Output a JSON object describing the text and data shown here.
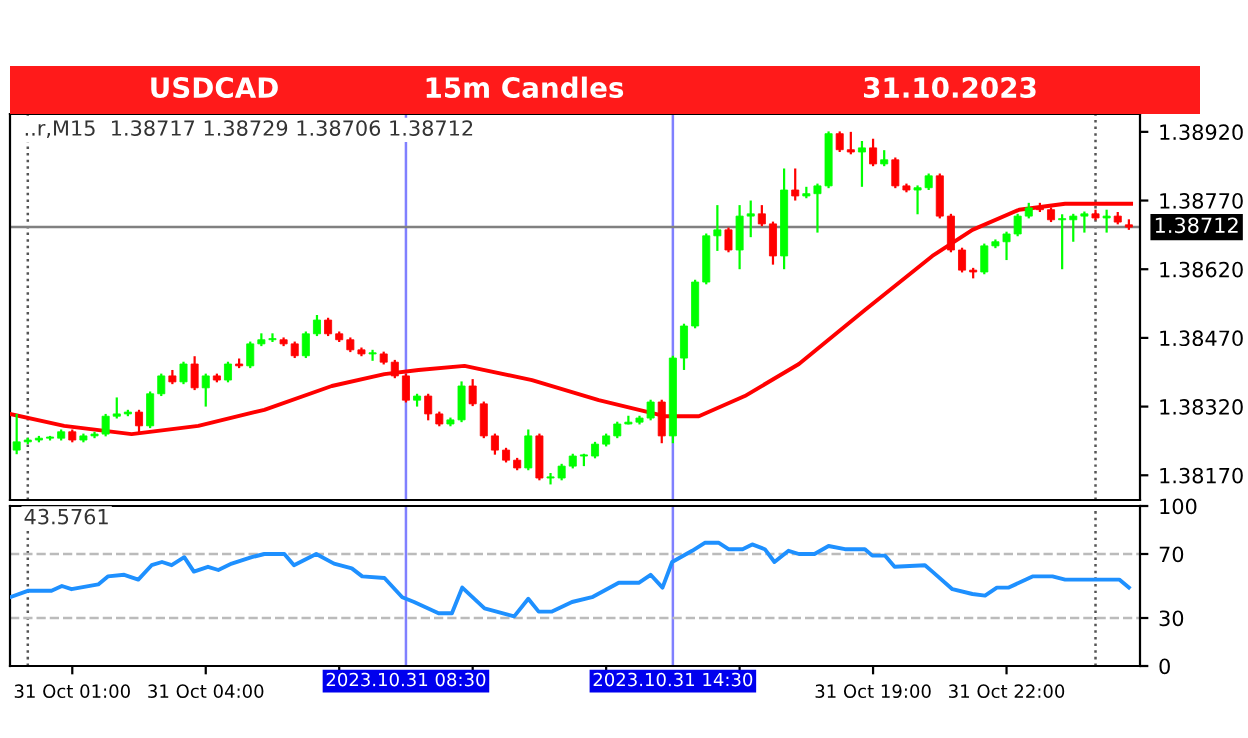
{
  "chart_data": [
    {
      "type": "candlestick",
      "title": "USDCAD",
      "subtitle": "15m Candles",
      "annotations": [
        "31.10.2023",
        "..r,M15  1.38717 1.38729 1.38706 1.38712"
      ],
      "tick_labels": "y",
      "xlim": [
        "2023-10-30T23:36",
        "2023-11-01T01:00"
      ],
      "ylim": [
        1.38116,
        1.38959
      ],
      "yticks": [
        {
          "value": 1.3892,
          "label": "1.38920"
        },
        {
          "value": 1.3877,
          "label": "1.38770"
        },
        {
          "value": 1.3862,
          "label": "1.38620"
        },
        {
          "value": 1.3847,
          "label": "1.38470"
        },
        {
          "value": 1.3832,
          "label": "1.38320"
        },
        {
          "value": 1.3817,
          "label": "1.38170"
        }
      ],
      "x": [
        "2023-10-30T23:45",
        "2023-10-31T00:00",
        "2023-10-31T00:15",
        "2023-10-31T00:30",
        "2023-10-31T00:45",
        "2023-10-31T01:00",
        "2023-10-31T01:15",
        "2023-10-31T01:30",
        "2023-10-31T01:45",
        "2023-10-31T02:00",
        "2023-10-31T02:15",
        "2023-10-31T02:30",
        "2023-10-31T02:45",
        "2023-10-31T03:00",
        "2023-10-31T03:15",
        "2023-10-31T03:30",
        "2023-10-31T03:45",
        "2023-10-31T04:00",
        "2023-10-31T04:15",
        "2023-10-31T04:30",
        "2023-10-31T04:45",
        "2023-10-31T05:00",
        "2023-10-31T05:15",
        "2023-10-31T05:30",
        "2023-10-31T05:45",
        "2023-10-31T06:00",
        "2023-10-31T06:15",
        "2023-10-31T06:30",
        "2023-10-31T06:45",
        "2023-10-31T07:00",
        "2023-10-31T07:15",
        "2023-10-31T07:30",
        "2023-10-31T07:45",
        "2023-10-31T08:00",
        "2023-10-31T08:15",
        "2023-10-31T08:30",
        "2023-10-31T08:45",
        "2023-10-31T09:00",
        "2023-10-31T09:15",
        "2023-10-31T09:30",
        "2023-10-31T09:45",
        "2023-10-31T10:00",
        "2023-10-31T10:15",
        "2023-10-31T10:30",
        "2023-10-31T10:45",
        "2023-10-31T11:00",
        "2023-10-31T11:15",
        "2023-10-31T11:30",
        "2023-10-31T11:45",
        "2023-10-31T12:00",
        "2023-10-31T12:15",
        "2023-10-31T12:30",
        "2023-10-31T12:45",
        "2023-10-31T13:00",
        "2023-10-31T13:15",
        "2023-10-31T13:30",
        "2023-10-31T13:45",
        "2023-10-31T14:00",
        "2023-10-31T14:15",
        "2023-10-31T14:30",
        "2023-10-31T14:45",
        "2023-10-31T15:00",
        "2023-10-31T15:15",
        "2023-10-31T15:30",
        "2023-10-31T15:45",
        "2023-10-31T16:00",
        "2023-10-31T16:15",
        "2023-10-31T16:30",
        "2023-10-31T16:45",
        "2023-10-31T17:00",
        "2023-10-31T17:15",
        "2023-10-31T17:30",
        "2023-10-31T17:45",
        "2023-10-31T18:00",
        "2023-10-31T18:15",
        "2023-10-31T18:30",
        "2023-10-31T18:45",
        "2023-10-31T19:00",
        "2023-10-31T19:15",
        "2023-10-31T19:30",
        "2023-10-31T19:45",
        "2023-10-31T20:00",
        "2023-10-31T20:15",
        "2023-10-31T20:30",
        "2023-10-31T20:45",
        "2023-10-31T21:00",
        "2023-10-31T21:15",
        "2023-10-31T21:30",
        "2023-10-31T21:45",
        "2023-10-31T22:00",
        "2023-10-31T22:15",
        "2023-10-31T22:30",
        "2023-10-31T22:45",
        "2023-10-31T23:00",
        "2023-10-31T23:15",
        "2023-10-31T23:30",
        "2023-10-31T23:45",
        "2023-11-01T00:00",
        "2023-11-01T00:15",
        "2023-11-01T00:30",
        "2023-11-01T00:45"
      ],
      "ohlc": [
        [
          1.38225,
          1.38304,
          1.38216,
          1.38243
        ],
        [
          1.38243,
          1.38252,
          1.38238,
          1.38247
        ],
        [
          1.38247,
          1.38256,
          1.38242,
          1.38251
        ],
        [
          1.38251,
          1.38256,
          1.38246,
          1.38251
        ],
        [
          1.38251,
          1.3827,
          1.38246,
          1.38265
        ],
        [
          1.38265,
          1.3827,
          1.38242,
          1.38247
        ],
        [
          1.38247,
          1.38261,
          1.38242,
          1.38256
        ],
        [
          1.38256,
          1.38265,
          1.38251,
          1.3826
        ],
        [
          1.3826,
          1.38304,
          1.38255,
          1.38299
        ],
        [
          1.38299,
          1.3834,
          1.38294,
          1.38304
        ],
        [
          1.38304,
          1.38313,
          1.38299,
          1.38308
        ],
        [
          1.38308,
          1.38313,
          1.3826,
          1.38278
        ],
        [
          1.38278,
          1.38353,
          1.38273,
          1.38348
        ],
        [
          1.38348,
          1.38392,
          1.38343,
          1.38387
        ],
        [
          1.38387,
          1.384,
          1.38369,
          1.38374
        ],
        [
          1.38374,
          1.38418,
          1.38369,
          1.38413
        ],
        [
          1.38413,
          1.3843,
          1.38356,
          1.38361
        ],
        [
          1.38361,
          1.38392,
          1.3832,
          1.38387
        ],
        [
          1.38387,
          1.38392,
          1.38373,
          1.38378
        ],
        [
          1.38378,
          1.38418,
          1.38373,
          1.38413
        ],
        [
          1.38413,
          1.38425,
          1.38404,
          1.38409
        ],
        [
          1.38409,
          1.38462,
          1.38404,
          1.38457
        ],
        [
          1.38457,
          1.3848,
          1.38452,
          1.38466
        ],
        [
          1.38466,
          1.3848,
          1.38461,
          1.38466
        ],
        [
          1.38466,
          1.38471,
          1.38452,
          1.38457
        ],
        [
          1.38457,
          1.38462,
          1.38426,
          1.38431
        ],
        [
          1.38431,
          1.38484,
          1.38426,
          1.38479
        ],
        [
          1.38479,
          1.3852,
          1.38474,
          1.38509
        ],
        [
          1.38509,
          1.38514,
          1.38474,
          1.38479
        ],
        [
          1.38479,
          1.38484,
          1.38461,
          1.38466
        ],
        [
          1.38466,
          1.38471,
          1.38439,
          1.38444
        ],
        [
          1.38444,
          1.38449,
          1.3843,
          1.38435
        ],
        [
          1.38435,
          1.38444,
          1.3842,
          1.38435
        ],
        [
          1.38435,
          1.3844,
          1.38412,
          1.38417
        ],
        [
          1.38417,
          1.38422,
          1.38382,
          1.38387
        ],
        [
          1.38387,
          1.38392,
          1.38329,
          1.38334
        ],
        [
          1.38334,
          1.38348,
          1.3832,
          1.38343
        ],
        [
          1.38343,
          1.38348,
          1.3829,
          1.38304
        ],
        [
          1.38304,
          1.38309,
          1.38277,
          1.38282
        ],
        [
          1.38282,
          1.38296,
          1.38277,
          1.38291
        ],
        [
          1.38291,
          1.38375,
          1.38286,
          1.38365
        ],
        [
          1.38365,
          1.3838,
          1.38321,
          1.38326
        ],
        [
          1.38326,
          1.38331,
          1.38251,
          1.38256
        ],
        [
          1.38256,
          1.38261,
          1.38215,
          1.38225
        ],
        [
          1.38225,
          1.3823,
          1.38198,
          1.38203
        ],
        [
          1.38203,
          1.38208,
          1.38181,
          1.38186
        ],
        [
          1.38186,
          1.3827,
          1.38181,
          1.38256
        ],
        [
          1.38256,
          1.38261,
          1.38159,
          1.38164
        ],
        [
          1.38164,
          1.38175,
          1.3815,
          1.38164
        ],
        [
          1.38164,
          1.38195,
          1.38159,
          1.3819
        ],
        [
          1.3819,
          1.38217,
          1.38185,
          1.38212
        ],
        [
          1.38212,
          1.38217,
          1.3819,
          1.38212
        ],
        [
          1.38212,
          1.38243,
          1.38207,
          1.38238
        ],
        [
          1.38238,
          1.38261,
          1.38233,
          1.38256
        ],
        [
          1.38256,
          1.38287,
          1.38251,
          1.38282
        ],
        [
          1.38282,
          1.383,
          1.38281,
          1.38286
        ],
        [
          1.38286,
          1.383,
          1.38281,
          1.38295
        ],
        [
          1.38295,
          1.38335,
          1.3829,
          1.3833
        ],
        [
          1.3833,
          1.38335,
          1.3824,
          1.38256
        ],
        [
          1.38256,
          1.38431,
          1.3824,
          1.38426
        ],
        [
          1.38426,
          1.38501,
          1.384,
          1.38496
        ],
        [
          1.38496,
          1.38597,
          1.38491,
          1.38592
        ],
        [
          1.38592,
          1.38698,
          1.38587,
          1.38693
        ],
        [
          1.38693,
          1.3876,
          1.3866,
          1.38706
        ],
        [
          1.38706,
          1.38711,
          1.38657,
          1.38662
        ],
        [
          1.38662,
          1.3876,
          1.3862,
          1.38736
        ],
        [
          1.38736,
          1.3877,
          1.3869,
          1.38741
        ],
        [
          1.38741,
          1.3876,
          1.38714,
          1.38719
        ],
        [
          1.38719,
          1.38724,
          1.3863,
          1.38649
        ],
        [
          1.38649,
          1.3884,
          1.3862,
          1.38793
        ],
        [
          1.38793,
          1.3884,
          1.3877,
          1.3878
        ],
        [
          1.3878,
          1.388,
          1.38775,
          1.38785
        ],
        [
          1.38785,
          1.38807,
          1.387,
          1.38802
        ],
        [
          1.38802,
          1.38921,
          1.38797,
          1.38916
        ],
        [
          1.38916,
          1.38921,
          1.38876,
          1.38881
        ],
        [
          1.38881,
          1.3892,
          1.38871,
          1.38876
        ],
        [
          1.38876,
          1.389,
          1.388,
          1.38885
        ],
        [
          1.38885,
          1.38905,
          1.38845,
          1.3885
        ],
        [
          1.3885,
          1.3888,
          1.38845,
          1.38859
        ],
        [
          1.38859,
          1.38864,
          1.38797,
          1.38802
        ],
        [
          1.38802,
          1.38807,
          1.38788,
          1.38793
        ],
        [
          1.38793,
          1.38803,
          1.3874,
          1.38798
        ],
        [
          1.38798,
          1.38829,
          1.38793,
          1.38824
        ],
        [
          1.38824,
          1.38829,
          1.38731,
          1.38736
        ],
        [
          1.38736,
          1.38741,
          1.38657,
          1.38662
        ],
        [
          1.38662,
          1.38667,
          1.38613,
          1.38618
        ],
        [
          1.38618,
          1.38623,
          1.386,
          1.38614
        ],
        [
          1.38614,
          1.38676,
          1.38609,
          1.38671
        ],
        [
          1.38671,
          1.38685,
          1.38666,
          1.3868
        ],
        [
          1.3868,
          1.38702,
          1.3864,
          1.38697
        ],
        [
          1.38697,
          1.38741,
          1.38692,
          1.38736
        ],
        [
          1.38736,
          1.38765,
          1.38731,
          1.38754
        ],
        [
          1.38754,
          1.38765,
          1.38745,
          1.3875
        ],
        [
          1.3875,
          1.38755,
          1.38723,
          1.38728
        ],
        [
          1.38728,
          1.3874,
          1.3862,
          1.38728
        ],
        [
          1.38728,
          1.38741,
          1.3868,
          1.38736
        ],
        [
          1.38736,
          1.38746,
          1.387,
          1.38741
        ],
        [
          1.38741,
          1.3875,
          1.38727,
          1.38732
        ],
        [
          1.38732,
          1.3875,
          1.387,
          1.38736
        ],
        [
          1.38736,
          1.38745,
          1.38718,
          1.38723
        ],
        [
          1.38717,
          1.38729,
          1.38706,
          1.38712
        ]
      ],
      "colors": [
        "#00ff00",
        "#00ff00",
        "#00ff00",
        "#00ff00",
        "#00ff00",
        "#ff0000",
        "#00ff00",
        "#00ff00",
        "#00ff00",
        "#00ff00",
        "#00ff00",
        "#ff0000",
        "#00ff00",
        "#00ff00",
        "#ff0000",
        "#00ff00",
        "#ff0000",
        "#00ff00",
        "#ff0000",
        "#00ff00",
        "#ff0000",
        "#00ff00",
        "#00ff00",
        "#00ff00",
        "#ff0000",
        "#ff0000",
        "#00ff00",
        "#00ff00",
        "#ff0000",
        "#ff0000",
        "#ff0000",
        "#ff0000",
        "#00ff00",
        "#ff0000",
        "#ff0000",
        "#ff0000",
        "#00ff00",
        "#ff0000",
        "#ff0000",
        "#00ff00",
        "#00ff00",
        "#ff0000",
        "#ff0000",
        "#ff0000",
        "#ff0000",
        "#ff0000",
        "#00ff00",
        "#ff0000",
        "#00ff00",
        "#00ff00",
        "#00ff00",
        "#00ff00",
        "#00ff00",
        "#00ff00",
        "#00ff00",
        "#00ff00",
        "#00ff00",
        "#00ff00",
        "#ff0000",
        "#00ff00",
        "#00ff00",
        "#00ff00",
        "#00ff00",
        "#00ff00",
        "#ff0000",
        "#00ff00",
        "#00ff00",
        "#ff0000",
        "#ff0000",
        "#00ff00",
        "#ff0000",
        "#00ff00",
        "#00ff00",
        "#00ff00",
        "#ff0000",
        "#ff0000",
        "#00ff00",
        "#ff0000",
        "#00ff00",
        "#ff0000",
        "#ff0000",
        "#00ff00",
        "#00ff00",
        "#ff0000",
        "#ff0000",
        "#ff0000",
        "#ff0000",
        "#00ff00",
        "#00ff00",
        "#00ff00",
        "#00ff00",
        "#00ff00",
        "#ff0000",
        "#ff0000",
        "#00ff00",
        "#00ff00",
        "#00ff00",
        "#ff0000",
        "#00ff00",
        "#ff0000",
        "#ff0000"
      ],
      "series": [
        {
          "type": "line",
          "color": "#ff0000",
          "x": [
            "2023-10-30T23:36",
            "2023-10-31T00:49",
            "2023-10-31T02:20",
            "2023-10-31T03:50",
            "2023-10-31T05:19",
            "2023-10-31T06:50",
            "2023-10-31T08:01",
            "2023-10-31T08:47",
            "2023-10-31T09:49",
            "2023-10-31T11:20",
            "2023-10-31T12:50",
            "2023-10-31T14:19",
            "2023-10-31T15:05",
            "2023-10-31T16:07",
            "2023-10-31T17:20",
            "2023-10-31T18:49",
            "2023-10-31T20:20",
            "2023-10-31T21:14",
            "2023-10-31T22:17",
            "2023-10-31T23:19",
            "2023-11-01T00:48"
          ],
          "values": [
            1.38304,
            1.38278,
            1.3826,
            1.38278,
            1.38313,
            1.38365,
            1.38391,
            1.384,
            1.38409,
            1.38378,
            1.38334,
            1.38299,
            1.38299,
            1.38343,
            1.38413,
            1.38531,
            1.38649,
            1.38706,
            1.3875,
            1.38763,
            1.38763
          ]
        }
      ],
      "ref_lines": [
        {
          "axis": "x",
          "value": "2023-10-31T00:00",
          "color": "#555555",
          "line_style": "dotted"
        },
        {
          "axis": "x",
          "value": "2023-11-01T00:00",
          "color": "#555555",
          "line_style": "dotted"
        },
        {
          "axis": "x",
          "value": "2023-10-31T08:30",
          "color": "#8080ff",
          "line_style": "solid"
        },
        {
          "axis": "x",
          "value": "2023-10-31T14:30",
          "color": "#8080ff",
          "line_style": "solid"
        },
        {
          "axis": "y",
          "value": 1.38712,
          "color": "#808080",
          "line_style": "solid",
          "label": "1.38712"
        }
      ]
    },
    {
      "type": "line",
      "annotations": [
        "43.5761"
      ],
      "xlim": [
        "2023-10-30T23:36",
        "2023-11-01T01:00"
      ],
      "ylim": [
        0,
        100
      ],
      "yticks": [
        0,
        30,
        70,
        100
      ],
      "xticks": [
        {
          "value": "2023-10-31T01:00",
          "label": "31 Oct 01:00"
        },
        {
          "value": "2023-10-31T04:00",
          "label": "31 Oct 04:00"
        },
        {
          "value": "2023-10-31T07:00",
          "label": null
        },
        {
          "value": "2023-10-31T10:00",
          "label": null
        },
        {
          "value": "2023-10-31T13:00",
          "label": null
        },
        {
          "value": "2023-10-31T16:00",
          "label": null
        },
        {
          "value": "2023-10-31T19:00",
          "label": "31 Oct 19:00"
        },
        {
          "value": "2023-10-31T22:00",
          "label": "31 Oct 22:00"
        }
      ],
      "series": [
        {
          "color": "#1e90ff",
          "x": [
            "2023-10-30T23:36",
            "2023-10-31T00:00",
            "2023-10-31T00:32",
            "2023-10-31T00:46",
            "2023-10-31T00:59",
            "2023-10-31T01:35",
            "2023-10-31T01:48",
            "2023-10-31T02:10",
            "2023-10-31T02:29",
            "2023-10-31T02:47",
            "2023-10-31T03:01",
            "2023-10-31T03:14",
            "2023-10-31T03:31",
            "2023-10-31T03:44",
            "2023-10-31T04:03",
            "2023-10-31T04:17",
            "2023-10-31T04:35",
            "2023-10-31T05:02",
            "2023-10-31T05:19",
            "2023-10-31T05:46",
            "2023-10-31T05:59",
            "2023-10-31T06:29",
            "2023-10-31T06:53",
            "2023-10-31T07:17",
            "2023-10-31T07:31",
            "2023-10-31T08:01",
            "2023-10-31T08:25",
            "2023-10-31T08:41",
            "2023-10-31T09:14",
            "2023-10-31T09:32",
            "2023-10-31T09:46",
            "2023-10-31T10:16",
            "2023-10-31T10:56",
            "2023-10-31T11:15",
            "2023-10-31T11:29",
            "2023-10-31T11:47",
            "2023-10-31T12:14",
            "2023-10-31T12:41",
            "2023-10-31T13:17",
            "2023-10-31T13:44",
            "2023-10-31T14:00",
            "2023-10-31T14:16",
            "2023-10-31T14:29",
            "2023-10-31T14:56",
            "2023-10-31T15:13",
            "2023-10-31T15:32",
            "2023-10-31T15:45",
            "2023-10-31T16:04",
            "2023-10-31T16:17",
            "2023-10-31T16:34",
            "2023-10-31T16:47",
            "2023-10-31T17:06",
            "2023-10-31T17:20",
            "2023-10-31T17:41",
            "2023-10-31T18:00",
            "2023-10-31T18:22",
            "2023-10-31T18:49",
            "2023-10-31T18:59",
            "2023-10-31T19:16",
            "2023-10-31T19:29",
            "2023-10-31T20:10",
            "2023-10-31T20:20",
            "2023-10-31T20:47",
            "2023-10-31T21:14",
            "2023-10-31T21:31",
            "2023-10-31T21:47",
            "2023-10-31T22:03",
            "2023-10-31T22:35",
            "2023-10-31T23:02",
            "2023-10-31T23:19",
            "2023-11-01T00:32",
            "2023-11-01T00:45"
          ],
          "values": [
            43,
            47,
            47,
            50,
            48,
            51,
            56,
            57,
            54,
            63,
            65,
            63,
            68,
            59,
            62,
            60,
            64,
            68,
            70,
            70,
            63,
            70,
            64,
            61,
            56,
            55,
            43,
            40,
            33,
            33,
            49,
            36,
            31,
            42,
            34,
            34,
            40,
            43,
            52,
            52,
            57,
            49,
            65,
            72,
            77,
            77,
            73,
            73,
            76,
            73,
            65,
            72,
            70,
            70,
            75,
            73,
            73,
            69,
            69,
            62,
            63,
            59,
            48,
            45,
            44,
            49,
            49,
            56,
            56,
            54,
            54,
            49
          ]
        }
      ],
      "ref_lines": [
        {
          "axis": "x",
          "value": "2023-10-31T00:00",
          "color": "#555555",
          "line_style": "dotted"
        },
        {
          "axis": "x",
          "value": "2023-11-01T00:00",
          "color": "#555555",
          "line_style": "dotted"
        },
        {
          "axis": "x",
          "value": "2023-10-31T08:30",
          "color": "#8080ff",
          "line_style": "solid",
          "label": "2023.10.31 08:30"
        },
        {
          "axis": "x",
          "value": "2023-10-31T14:30",
          "color": "#8080ff",
          "line_style": "solid",
          "label": "2023.10.31 14:30"
        },
        {
          "axis": "y",
          "value": 30,
          "color": "#bbbbbb",
          "line_style": "dashed"
        },
        {
          "axis": "y",
          "value": 70,
          "color": "#bbbbbb",
          "line_style": "dashed"
        }
      ]
    }
  ]
}
